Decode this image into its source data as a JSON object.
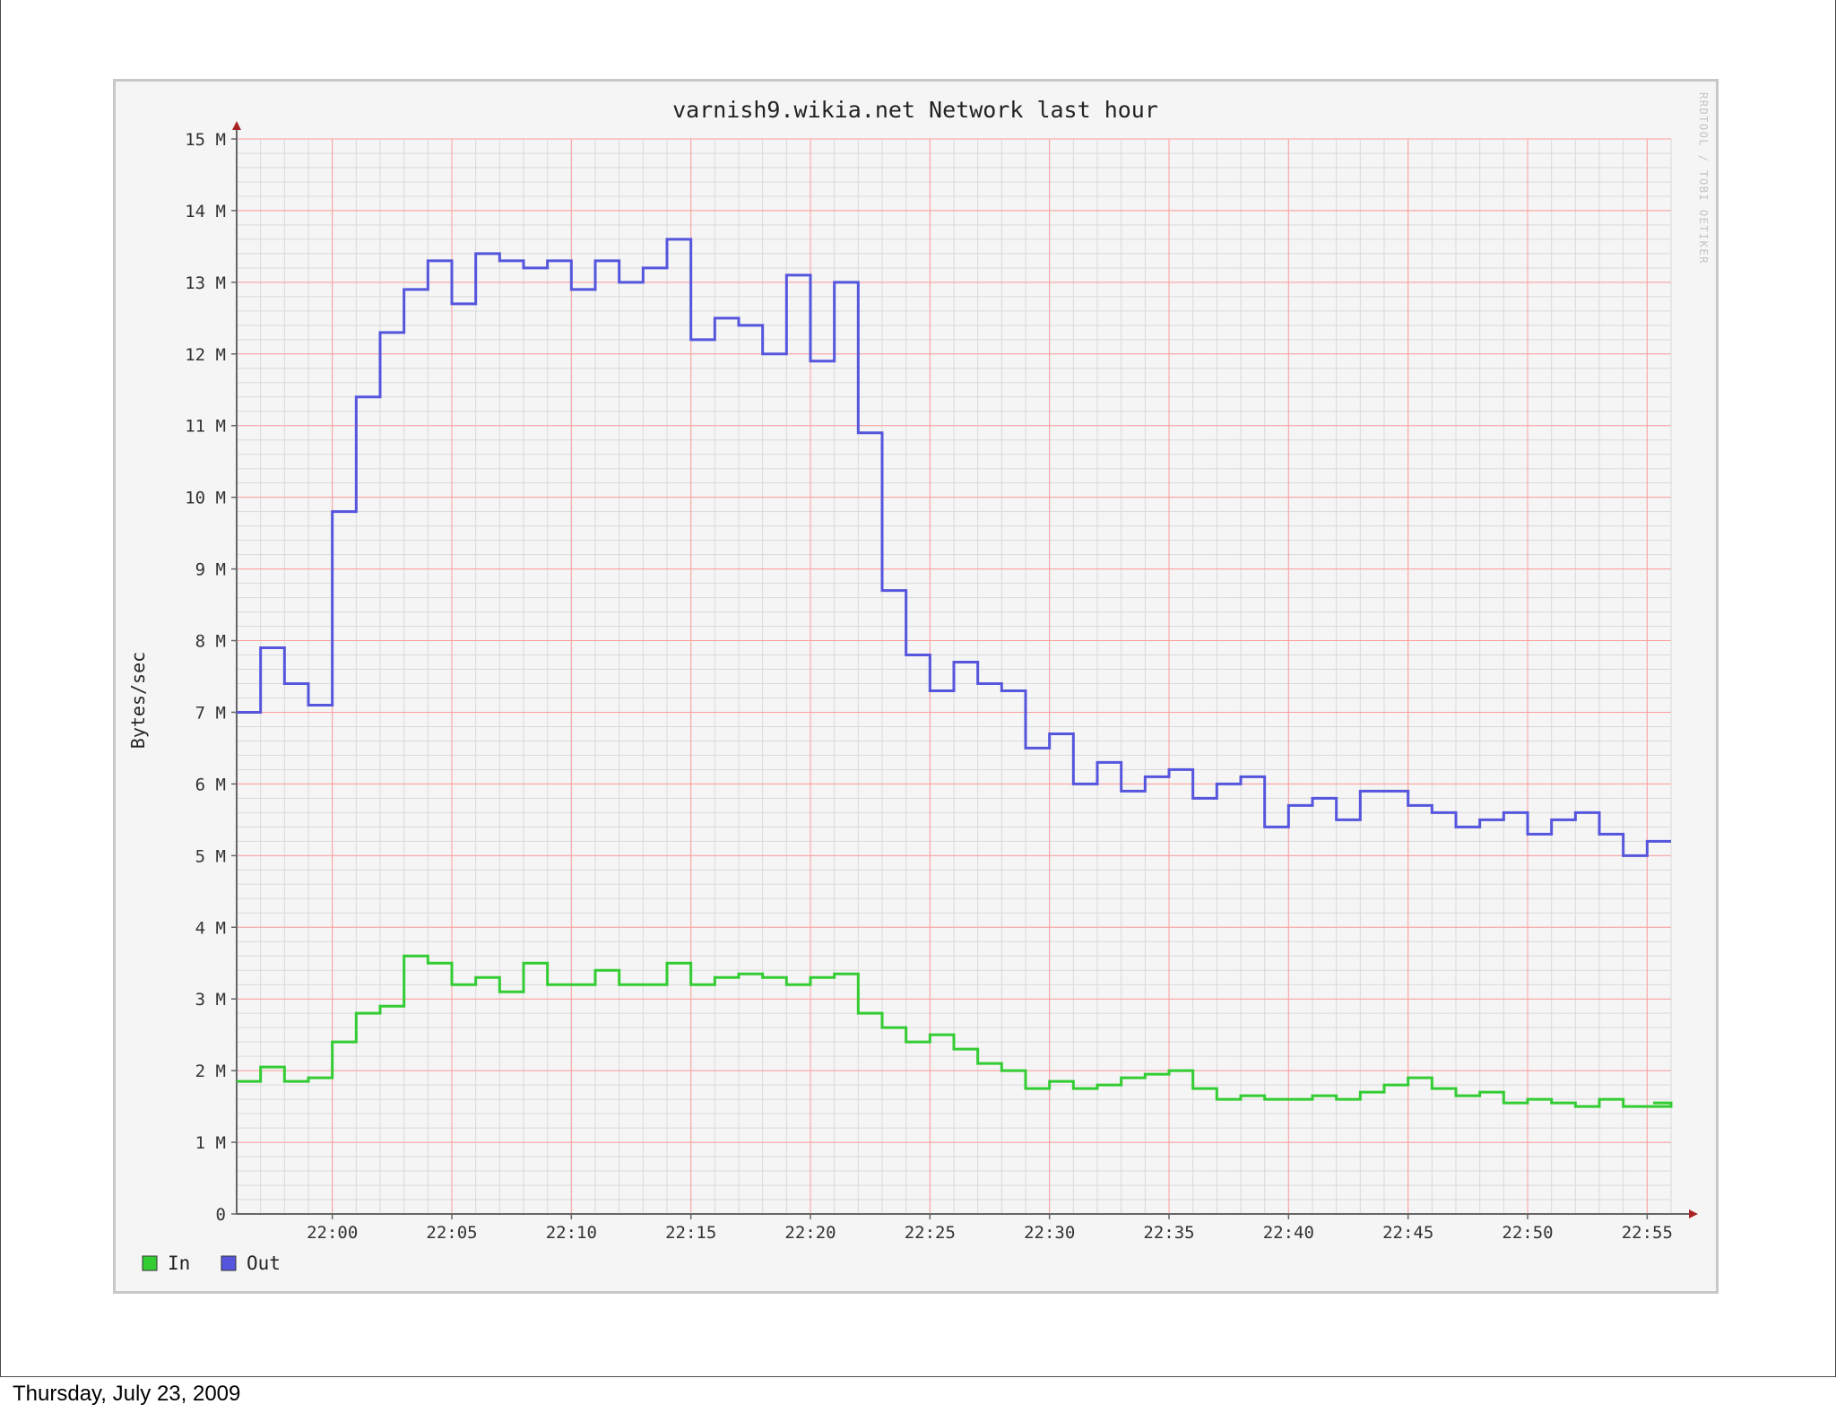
{
  "footer": {
    "date": "Thursday, July 23, 2009"
  },
  "watermark": "RRDTOOL / TOBI OETIKER",
  "colors": {
    "in": "#33cc33",
    "out": "#5555dd",
    "major_grid": "#ff9d9d",
    "minor_grid": "#d9d9d9",
    "axis": "#666666",
    "arrow": "#aa2222"
  },
  "chart_data": {
    "type": "line",
    "title": "varnish9.wikia.net Network last hour",
    "ylabel": "Bytes/sec",
    "xlabel": "",
    "ylim": [
      0,
      15
    ],
    "y_unit": "M",
    "yticks": [
      0,
      1,
      2,
      3,
      4,
      5,
      6,
      7,
      8,
      9,
      10,
      11,
      12,
      13,
      14,
      15
    ],
    "ytick_labels": [
      "0",
      "1 M",
      "2 M",
      "3 M",
      "4 M",
      "5 M",
      "6 M",
      "7 M",
      "8 M",
      "9 M",
      "10 M",
      "11 M",
      "12 M",
      "13 M",
      "14 M",
      "15 M"
    ],
    "xlim": [
      "21:56",
      "22:56"
    ],
    "xticks": [
      "22:00",
      "22:05",
      "22:10",
      "22:15",
      "22:20",
      "22:25",
      "22:30",
      "22:35",
      "22:40",
      "22:45",
      "22:50",
      "22:55"
    ],
    "grid": true,
    "step": true,
    "legend_position": "bottom-left",
    "series": [
      {
        "name": "In",
        "color": "#33cc33",
        "x": [
          "21:56",
          "21:57",
          "21:58",
          "21:59",
          "22:00",
          "22:01",
          "22:02",
          "22:03",
          "22:04",
          "22:05",
          "22:06",
          "22:07",
          "22:08",
          "22:09",
          "22:10",
          "22:11",
          "22:12",
          "22:13",
          "22:14",
          "22:15",
          "22:16",
          "22:17",
          "22:18",
          "22:19",
          "22:20",
          "22:21",
          "22:22",
          "22:23",
          "22:24",
          "22:25",
          "22:26",
          "22:27",
          "22:28",
          "22:29",
          "22:30",
          "22:31",
          "22:32",
          "22:33",
          "22:34",
          "22:35",
          "22:36",
          "22:37",
          "22:38",
          "22:39",
          "22:40",
          "22:41",
          "22:42",
          "22:43",
          "22:44",
          "22:45",
          "22:46",
          "22:47",
          "22:48",
          "22:49",
          "22:50",
          "22:51",
          "22:52",
          "22:53",
          "22:54",
          "22:55",
          "22:56"
        ],
        "values": [
          1.85,
          2.05,
          1.85,
          1.9,
          2.4,
          2.8,
          2.9,
          3.6,
          3.5,
          3.2,
          3.3,
          3.1,
          3.5,
          3.2,
          3.2,
          3.4,
          3.2,
          3.2,
          3.5,
          3.2,
          3.3,
          3.35,
          3.3,
          3.2,
          3.3,
          3.35,
          2.8,
          2.6,
          2.4,
          2.5,
          2.3,
          2.1,
          2.0,
          1.75,
          1.85,
          1.75,
          1.8,
          1.9,
          1.95,
          2.0,
          1.75,
          1.6,
          1.65,
          1.6,
          1.6,
          1.65,
          1.6,
          1.7,
          1.8,
          1.9,
          1.75,
          1.65,
          1.7,
          1.55,
          1.6,
          1.55,
          1.5,
          1.6,
          1.5,
          1.5,
          1.55
        ]
      },
      {
        "name": "Out",
        "color": "#5555dd",
        "x": [
          "21:56",
          "21:57",
          "21:58",
          "21:59",
          "22:00",
          "22:01",
          "22:02",
          "22:03",
          "22:04",
          "22:05",
          "22:06",
          "22:07",
          "22:08",
          "22:09",
          "22:10",
          "22:11",
          "22:12",
          "22:13",
          "22:14",
          "22:15",
          "22:16",
          "22:17",
          "22:18",
          "22:19",
          "22:20",
          "22:21",
          "22:22",
          "22:23",
          "22:24",
          "22:25",
          "22:26",
          "22:27",
          "22:28",
          "22:29",
          "22:30",
          "22:31",
          "22:32",
          "22:33",
          "22:34",
          "22:35",
          "22:36",
          "22:37",
          "22:38",
          "22:39",
          "22:40",
          "22:41",
          "22:42",
          "22:43",
          "22:44",
          "22:45",
          "22:46",
          "22:47",
          "22:48",
          "22:49",
          "22:50",
          "22:51",
          "22:52",
          "22:53",
          "22:54",
          "22:55",
          "22:56"
        ],
        "values": [
          7.0,
          7.9,
          7.4,
          7.1,
          9.8,
          11.4,
          12.3,
          12.9,
          13.3,
          12.7,
          13.4,
          13.3,
          13.2,
          13.3,
          12.9,
          13.3,
          13.0,
          13.2,
          13.6,
          12.2,
          12.5,
          12.4,
          12.0,
          13.1,
          11.9,
          13.0,
          10.9,
          8.7,
          7.8,
          7.3,
          7.7,
          7.4,
          7.3,
          6.5,
          6.7,
          6.0,
          6.3,
          5.9,
          6.1,
          6.2,
          5.8,
          6.0,
          6.1,
          5.4,
          5.7,
          5.8,
          5.5,
          5.9,
          5.9,
          5.7,
          5.6,
          5.4,
          5.5,
          5.6,
          5.3,
          5.5,
          5.6,
          5.3,
          5.0,
          5.2,
          5.2
        ]
      }
    ]
  }
}
